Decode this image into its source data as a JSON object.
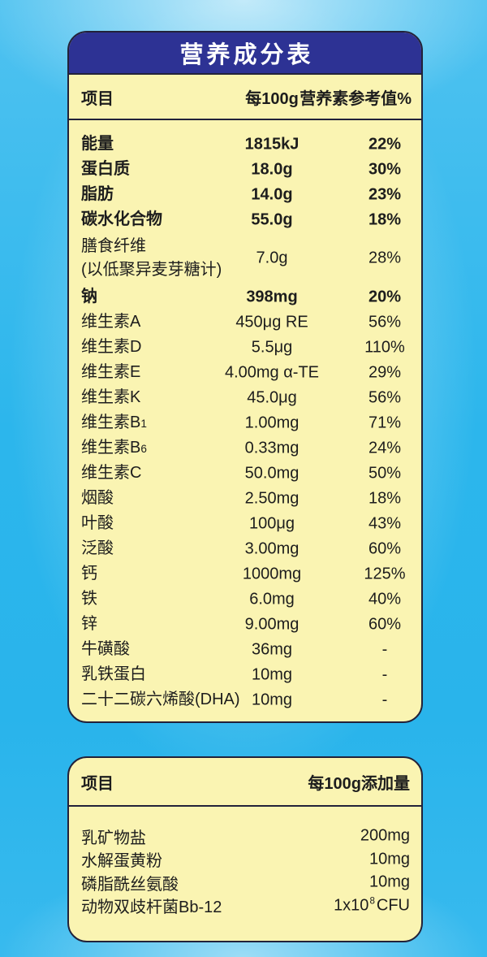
{
  "title": "营养成分表",
  "colors": {
    "accent_navy": "#2d3294",
    "card_cream": "#faf4b2",
    "card_border": "#22223a",
    "background_blue": "#29b4eb",
    "title_text": "#ffffff",
    "body_text": "#1d1d1d"
  },
  "table1": {
    "header": {
      "item": "项目",
      "per100g": "每100g",
      "nrv": "营养素参考值%"
    },
    "rows": [
      {
        "label": "能量",
        "value": "1815kJ",
        "nrv": "22%",
        "bold": true
      },
      {
        "label": "蛋白质",
        "value": "18.0g",
        "nrv": "30%",
        "bold": true
      },
      {
        "label": "脂肪",
        "value": "14.0g",
        "nrv": "23%",
        "bold": true
      },
      {
        "label": "碳水化合物",
        "value": "55.0g",
        "nrv": "18%",
        "bold": true
      },
      {
        "label": "膳食纤维",
        "label2": "(以低聚异麦芽糖计)",
        "value": "7.0g",
        "nrv": "28%"
      },
      {
        "label": "钠",
        "value": "398mg",
        "nrv": "20%",
        "bold": true
      },
      {
        "label": "维生素A",
        "value": "450μg RE",
        "nrv": "56%"
      },
      {
        "label": "维生素D",
        "value": "5.5μg",
        "nrv": "110%"
      },
      {
        "label": "维生素E",
        "value": "4.00mg α-TE",
        "nrv": "29%"
      },
      {
        "label": "维生素K",
        "value": "45.0μg",
        "nrv": "56%"
      },
      {
        "label": "维生素B",
        "sub": "1",
        "value": "1.00mg",
        "nrv": "71%"
      },
      {
        "label": "维生素B",
        "sub": "6",
        "value": "0.33mg",
        "nrv": "24%"
      },
      {
        "label": "维生素C",
        "value": "50.0mg",
        "nrv": "50%"
      },
      {
        "label": "烟酸",
        "value": "2.50mg",
        "nrv": "18%"
      },
      {
        "label": "叶酸",
        "value": "100μg",
        "nrv": "43%"
      },
      {
        "label": "泛酸",
        "value": "3.00mg",
        "nrv": "60%"
      },
      {
        "label": "钙",
        "value": "1000mg",
        "nrv": "125%"
      },
      {
        "label": "铁",
        "value": "6.0mg",
        "nrv": "40%"
      },
      {
        "label": "锌",
        "value": "9.00mg",
        "nrv": "60%"
      },
      {
        "label": "牛磺酸",
        "value": "36mg",
        "nrv": "-"
      },
      {
        "label": "乳铁蛋白",
        "value": "10mg",
        "nrv": "-"
      },
      {
        "label": "二十二碳六烯酸(DHA)",
        "value": "10mg",
        "nrv": "-"
      }
    ]
  },
  "table2": {
    "header": {
      "item": "项目",
      "amount": "每100g添加量"
    },
    "rows": [
      {
        "label": "乳矿物盐",
        "value": "200mg"
      },
      {
        "label": "水解蛋黄粉",
        "value": "10mg"
      },
      {
        "label": "磷脂酰丝氨酸",
        "value": "10mg"
      },
      {
        "label": "动物双歧杆菌Bb-12",
        "value": "1x10",
        "sup": "8",
        "suffix": "CFU"
      }
    ]
  }
}
